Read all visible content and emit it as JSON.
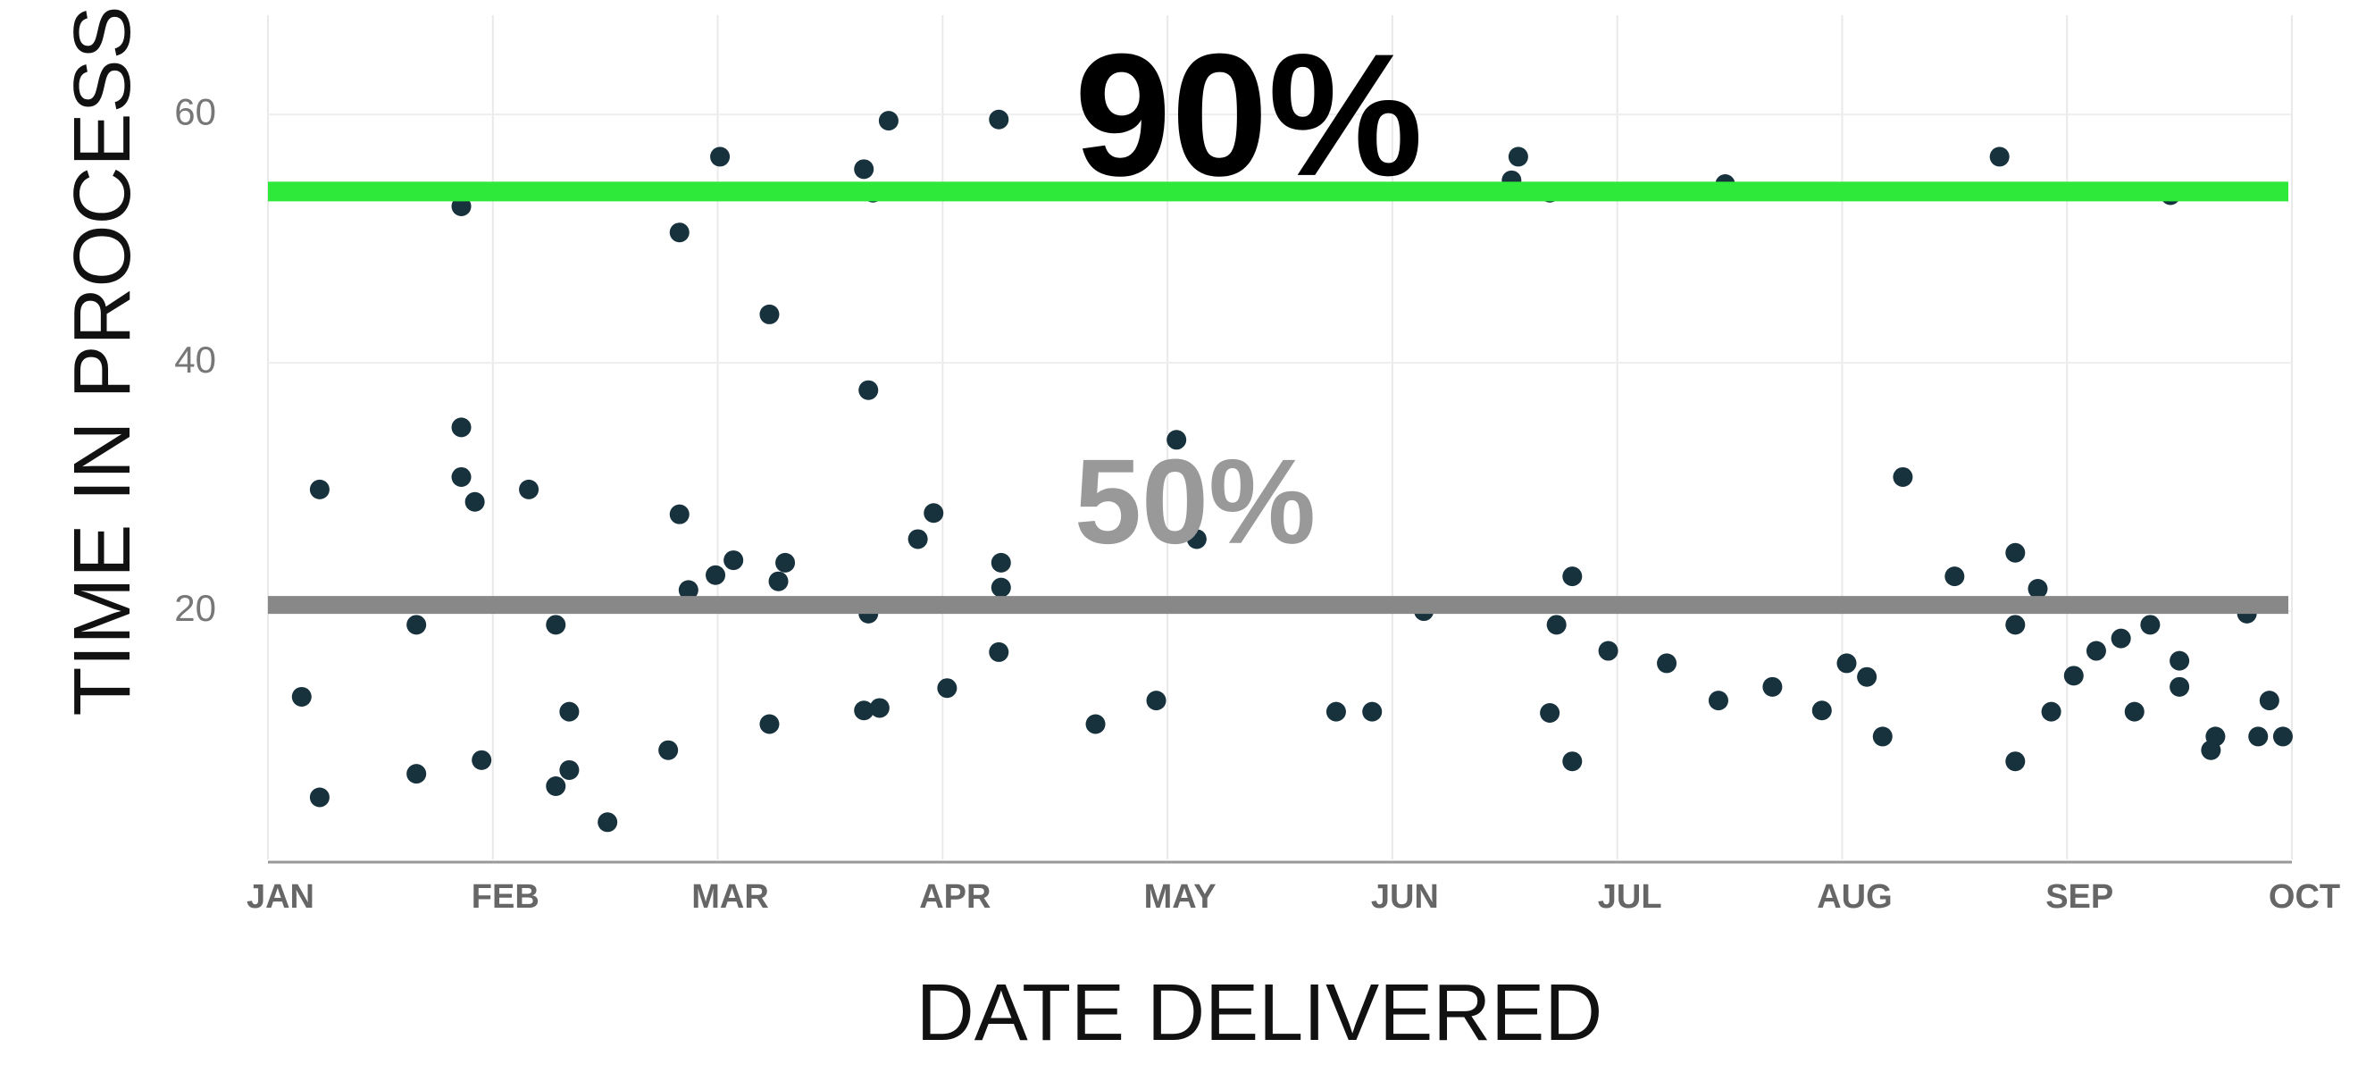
{
  "chart_data": {
    "type": "scatter",
    "x_label": "DATE DELIVERED",
    "y_label": "TIME IN PROCESS",
    "color": "#17313d",
    "x": [
      0.15,
      0.23,
      0.23,
      0.66,
      0.66,
      0.86,
      0.86,
      0.86,
      0.92,
      0.95,
      1.16,
      1.28,
      1.28,
      1.34,
      1.34,
      1.51,
      1.78,
      1.83,
      1.83,
      1.87,
      1.99,
      2.01,
      2.07,
      2.23,
      2.23,
      2.27,
      2.3,
      2.65,
      2.67,
      2.67,
      2.65,
      2.69,
      2.72,
      2.76,
      2.89,
      2.96,
      3.02,
      3.25,
      3.26,
      3.26,
      3.25,
      3.68,
      3.95,
      4.04,
      4.13,
      4.75,
      4.91,
      5.14,
      5.53,
      5.56,
      5.7,
      5.7,
      5.73,
      5.8,
      5.8,
      5.96,
      6.22,
      6.45,
      6.48,
      6.69,
      6.91,
      7.02,
      7.11,
      7.18,
      7.27,
      7.5,
      7.7,
      7.77,
      7.77,
      7.77,
      7.87,
      7.93,
      8.03,
      8.13,
      8.24,
      8.3,
      8.37,
      8.46,
      8.5,
      8.5,
      8.64,
      8.66,
      8.8,
      8.85,
      8.9,
      8.96
    ],
    "values": [
      13.1,
      29.8,
      5.0,
      18.9,
      6.9,
      52.6,
      34.8,
      30.8,
      28.8,
      8.0,
      29.8,
      18.9,
      5.9,
      11.9,
      7.2,
      3.0,
      8.8,
      50.5,
      27.8,
      21.7,
      22.9,
      56.6,
      24.1,
      43.9,
      10.9,
      22.4,
      23.9,
      55.6,
      37.8,
      19.8,
      12.0,
      53.7,
      12.2,
      59.5,
      25.8,
      27.9,
      13.8,
      59.6,
      23.9,
      21.9,
      16.7,
      10.9,
      12.8,
      33.8,
      25.8,
      11.9,
      11.9,
      20.0,
      54.7,
      56.6,
      53.7,
      11.8,
      18.9,
      22.8,
      7.9,
      16.8,
      15.8,
      12.8,
      54.4,
      13.9,
      12.0,
      15.8,
      14.7,
      9.9,
      30.8,
      22.8,
      56.6,
      24.7,
      18.9,
      7.9,
      21.8,
      11.9,
      14.8,
      16.8,
      17.8,
      11.9,
      18.9,
      53.5,
      16.0,
      13.9,
      8.8,
      9.9,
      19.8,
      9.9,
      12.8,
      9.9
    ],
    "xlim": [
      0,
      9
    ],
    "xticks": [
      {
        "value": 0,
        "label": "JAN"
      },
      {
        "value": 1,
        "label": "FEB"
      },
      {
        "value": 2,
        "label": "MAR"
      },
      {
        "value": 3,
        "label": "APR"
      },
      {
        "value": 4,
        "label": "MAY"
      },
      {
        "value": 5,
        "label": "JUN"
      },
      {
        "value": 6,
        "label": "JUL"
      },
      {
        "value": 7,
        "label": "AUG"
      },
      {
        "value": 8,
        "label": "SEP"
      },
      {
        "value": 9,
        "label": "OCT"
      }
    ],
    "ylim": [
      0,
      68
    ],
    "yticks": [
      20,
      40,
      60
    ],
    "grid": true,
    "reference_lines": [
      {
        "label": "90%",
        "value": 53.8,
        "color": "#2ee83a"
      },
      {
        "label": "50%",
        "value": 20.5,
        "color": "#888888"
      }
    ]
  }
}
